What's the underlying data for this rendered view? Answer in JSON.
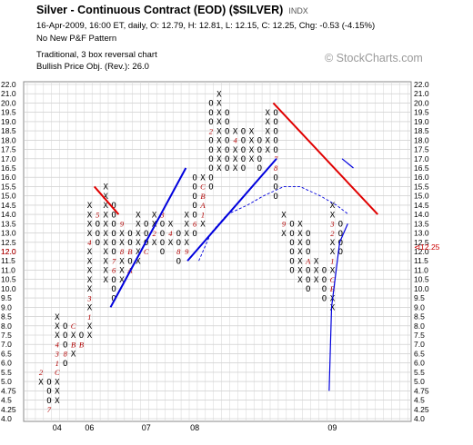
{
  "header": {
    "title": "Silver - Continuous Contract (EOD) ($SILVER)",
    "ticker_type": "INDX",
    "quote": "16-Apr-2009, 16:00 ET, daily, O: 12.79, H: 12.81, L: 12.15, C: 12.25, Chg: -0.53 (-4.15%)",
    "pattern": "No New P&F Pattern",
    "method": "Traditional, 3 box reversal chart",
    "objective": "Bullish Price Obj. (Rev.): 26.0"
  },
  "watermark": "© StockCharts.com",
  "chart_data": {
    "type": "point-and-figure",
    "y_ticks": [
      "22.0",
      "21.0",
      "20.0",
      "19.5",
      "19.0",
      "18.5",
      "18.0",
      "17.5",
      "17.0",
      "16.5",
      "16.0",
      "15.5",
      "15.0",
      "14.5",
      "14.0",
      "13.5",
      "13.0",
      "12.5",
      "12.0",
      "11.5",
      "11.0",
      "10.5",
      "10.0",
      "9.5",
      "9.0",
      "8.5",
      "8.0",
      "7.5",
      "7.0",
      "6.5",
      "6.0",
      "5.5",
      "5.0",
      "4.75",
      "4.5",
      "4.25",
      "4.0"
    ],
    "last_price_label": "12.0",
    "last_price_marker": "12.25",
    "x_labels": [
      {
        "col": 2,
        "label": "04"
      },
      {
        "col": 6,
        "label": "06"
      },
      {
        "col": 13,
        "label": "07"
      },
      {
        "col": 19,
        "label": "08"
      },
      {
        "col": 36,
        "label": "09"
      }
    ],
    "columns": [
      {
        "t": "X",
        "lo": "5.0",
        "hi": "5.5",
        "m": {
          "5.5": "2"
        }
      },
      {
        "t": "O",
        "lo": "4.25",
        "hi": "5.0",
        "m": {
          "4.25": "7"
        }
      },
      {
        "t": "X",
        "lo": "4.5",
        "hi": "8.5",
        "m": {
          "5.5": "C",
          "6.0": "1",
          "6.5": "3",
          "7.0": "4"
        }
      },
      {
        "t": "O",
        "lo": "6.0",
        "hi": "8.0",
        "m": {
          "6.5": "8"
        }
      },
      {
        "t": "X",
        "lo": "6.5",
        "hi": "8.0",
        "m": {
          "7.0": "B",
          "8.0": "C"
        }
      },
      {
        "t": "O",
        "lo": "7.0",
        "hi": "7.5",
        "m": {
          "7.0": "B"
        }
      },
      {
        "t": "X",
        "lo": "7.5",
        "hi": "14.5",
        "m": {
          "8.5": "1",
          "9.5": "3",
          "12.5": "4"
        }
      },
      {
        "t": "O",
        "lo": "12.5",
        "hi": "14.0",
        "m": {
          "14.0": "5"
        }
      },
      {
        "t": "X",
        "lo": "10.5",
        "hi": "15.5",
        "m": {}
      },
      {
        "t": "O",
        "lo": "9.5",
        "hi": "14.5",
        "m": {
          "11.0": "6",
          "11.5": "7"
        }
      },
      {
        "t": "X",
        "lo": "10.5",
        "hi": "13.5",
        "m": {
          "12.0": "8",
          "13.5": "9"
        }
      },
      {
        "t": "O",
        "lo": "11.0",
        "hi": "13.0",
        "m": {
          "11.0": "A",
          "12.0": "B"
        }
      },
      {
        "t": "X",
        "lo": "11.5",
        "hi": "14.0",
        "m": {}
      },
      {
        "t": "O",
        "lo": "12.0",
        "hi": "13.5",
        "m": {
          "12.0": "C"
        }
      },
      {
        "t": "X",
        "lo": "12.5",
        "hi": "14.0",
        "m": {
          "13.0": "2"
        }
      },
      {
        "t": "O",
        "lo": "12.0",
        "hi": "14.0",
        "m": {
          "14.0": "3"
        }
      },
      {
        "t": "X",
        "lo": "12.5",
        "hi": "13.5",
        "m": {
          "13.0": "4"
        }
      },
      {
        "t": "O",
        "lo": "11.5",
        "hi": "13.0",
        "m": {
          "12.0": "8"
        }
      },
      {
        "t": "X",
        "lo": "12.0",
        "hi": "14.0",
        "m": {
          "12.0": "9"
        }
      },
      {
        "t": "O",
        "lo": "13.0",
        "hi": "16.0",
        "m": {
          "13.5": "6"
        }
      },
      {
        "t": "X",
        "lo": "13.5",
        "hi": "16.0",
        "m": {
          "14.5": "A",
          "15.0": "B",
          "15.5": "C",
          "14.0": "1"
        }
      },
      {
        "t": "O",
        "lo": "15.5",
        "hi": "20.0",
        "m": {
          "18.5": "2",
          "21.0": "3"
        }
      },
      {
        "t": "X",
        "lo": "16.5",
        "hi": "21.0",
        "m": {}
      },
      {
        "t": "O",
        "lo": "16.5",
        "hi": "19.5",
        "m": {}
      },
      {
        "t": "X",
        "lo": "16.5",
        "hi": "18.5",
        "m": {
          "18.0": "4"
        }
      },
      {
        "t": "O",
        "lo": "16.5",
        "hi": "18.5",
        "m": {}
      },
      {
        "t": "X",
        "lo": "17.0",
        "hi": "18.5",
        "m": {}
      },
      {
        "t": "O",
        "lo": "16.5",
        "hi": "18.0",
        "m": {}
      },
      {
        "t": "X",
        "lo": "17.5",
        "hi": "19.5",
        "m": {
          "17.0": "5"
        }
      },
      {
        "t": "O",
        "lo": "15.0",
        "hi": "19.5",
        "m": {
          "17.0": "7",
          "16.5": "8"
        }
      },
      {
        "t": "X",
        "lo": "13.0",
        "hi": "14.0",
        "m": {
          "13.5": "9"
        }
      },
      {
        "t": "O",
        "lo": "11.0",
        "hi": "13.5",
        "m": {}
      },
      {
        "t": "X",
        "lo": "10.5",
        "hi": "13.5",
        "m": {}
      },
      {
        "t": "O",
        "lo": "10.0",
        "hi": "13.0",
        "m": {
          "11.5": "A"
        }
      },
      {
        "t": "X",
        "lo": "10.5",
        "hi": "11.5",
        "m": {}
      },
      {
        "t": "O",
        "lo": "9.5",
        "hi": "11.0",
        "m": {}
      },
      {
        "t": "X",
        "lo": "9.0",
        "hi": "14.5",
        "m": {
          "10.0": "B",
          "10.5": "C",
          "11.5": "1",
          "13.0": "2",
          "13.5": "3"
        }
      },
      {
        "t": "O",
        "lo": "12.0",
        "hi": "13.5",
        "m": {}
      }
    ]
  }
}
